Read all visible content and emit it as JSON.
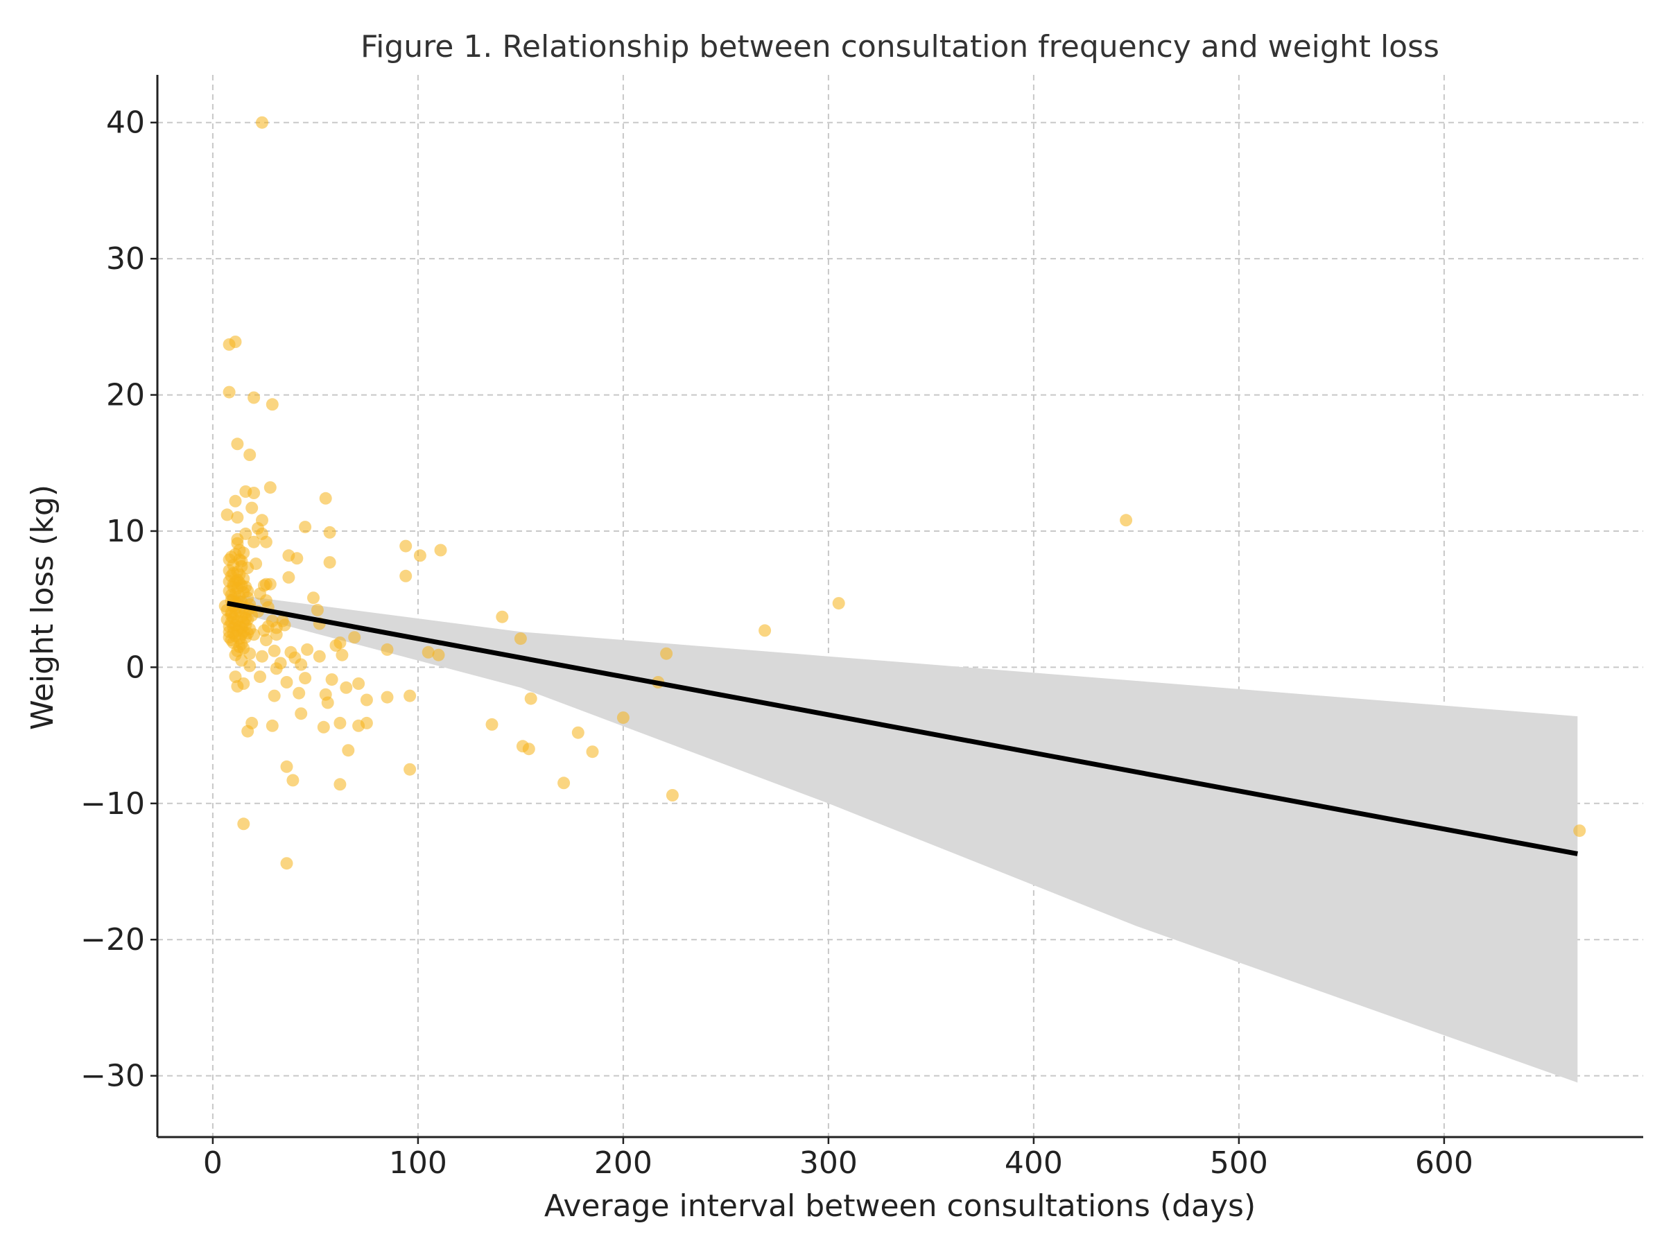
{
  "chart_data": {
    "type": "scatter",
    "title": "Figure 1. Relationship between consultation frequency and weight loss",
    "xlabel": "Average interval between consultations (days)",
    "ylabel": "Weight loss (kg)",
    "xlim": [
      -27,
      697
    ],
    "ylim": [
      -34.5,
      43.5
    ],
    "xticks": [
      0,
      100,
      200,
      300,
      400,
      500,
      600
    ],
    "yticks": [
      -30,
      -20,
      -10,
      0,
      10,
      20,
      30,
      40
    ],
    "xtick_labels": [
      "0",
      "100",
      "200",
      "300",
      "400",
      "500",
      "600"
    ],
    "ytick_labels": [
      "−30",
      "−20",
      "−10",
      "0",
      "10",
      "20",
      "30",
      "40"
    ],
    "grid": true,
    "colors": {
      "points": "#f5b31a",
      "regression_line": "#000000",
      "confidence_band": "#d9d9d9"
    },
    "regression_line": {
      "x": [
        7,
        665
      ],
      "y": [
        4.7,
        -13.7
      ]
    },
    "confidence_band": {
      "x": [
        7,
        150,
        300,
        450,
        665
      ],
      "lower": [
        4.2,
        -1.5,
        -10.0,
        -19.0,
        -30.5
      ],
      "upper": [
        5.4,
        2.6,
        0.8,
        -1.0,
        -3.6
      ]
    },
    "points": [
      [
        24,
        40.0
      ],
      [
        8,
        23.7
      ],
      [
        11,
        23.9
      ],
      [
        8,
        20.2
      ],
      [
        20,
        19.8
      ],
      [
        29,
        19.3
      ],
      [
        12,
        16.4
      ],
      [
        18,
        15.6
      ],
      [
        28,
        13.2
      ],
      [
        16,
        12.9
      ],
      [
        20,
        12.8
      ],
      [
        11,
        12.2
      ],
      [
        55,
        12.4
      ],
      [
        19,
        11.7
      ],
      [
        7,
        11.2
      ],
      [
        12,
        11.0
      ],
      [
        24,
        10.8
      ],
      [
        45,
        10.3
      ],
      [
        445,
        10.8
      ],
      [
        16,
        9.8
      ],
      [
        24,
        9.8
      ],
      [
        57,
        9.9
      ],
      [
        12,
        9.4
      ],
      [
        26,
        9.2
      ],
      [
        94,
        8.9
      ],
      [
        101,
        8.2
      ],
      [
        111,
        8.6
      ],
      [
        37,
        8.2
      ],
      [
        41,
        8.0
      ],
      [
        8,
        7.9
      ],
      [
        13,
        7.9
      ],
      [
        21,
        7.6
      ],
      [
        57,
        7.7
      ],
      [
        17,
        7.3
      ],
      [
        10,
        6.9
      ],
      [
        94,
        6.7
      ],
      [
        37,
        6.6
      ],
      [
        8,
        6.3
      ],
      [
        12,
        6.4
      ],
      [
        25,
        6.0
      ],
      [
        28,
        6.1
      ],
      [
        17,
        5.6
      ],
      [
        49,
        5.1
      ],
      [
        26,
        4.9
      ],
      [
        305,
        4.7
      ],
      [
        11,
        4.8
      ],
      [
        18,
        4.3
      ],
      [
        51,
        4.2
      ],
      [
        141,
        3.7
      ],
      [
        9,
        3.8
      ],
      [
        16,
        3.6
      ],
      [
        29,
        3.4
      ],
      [
        35,
        3.1
      ],
      [
        52,
        3.2
      ],
      [
        10,
        2.9
      ],
      [
        25,
        2.7
      ],
      [
        269,
        2.7
      ],
      [
        14,
        2.4
      ],
      [
        31,
        2.4
      ],
      [
        69,
        2.2
      ],
      [
        150,
        2.1
      ],
      [
        62,
        1.8
      ],
      [
        60,
        1.6
      ],
      [
        13,
        1.5
      ],
      [
        30,
        1.2
      ],
      [
        38,
        1.1
      ],
      [
        46,
        1.3
      ],
      [
        85,
        1.3
      ],
      [
        105,
        1.1
      ],
      [
        110,
        0.9
      ],
      [
        221,
        1.0
      ],
      [
        11,
        0.9
      ],
      [
        40,
        0.7
      ],
      [
        52,
        0.8
      ],
      [
        63,
        0.9
      ],
      [
        24,
        0.8
      ],
      [
        33,
        0.3
      ],
      [
        43,
        0.2
      ],
      [
        18,
        0.1
      ],
      [
        31,
        -0.1
      ],
      [
        11,
        -0.7
      ],
      [
        23,
        -0.7
      ],
      [
        45,
        -0.8
      ],
      [
        58,
        -0.9
      ],
      [
        15,
        -1.2
      ],
      [
        12,
        -1.4
      ],
      [
        36,
        -1.1
      ],
      [
        65,
        -1.5
      ],
      [
        71,
        -1.2
      ],
      [
        217,
        -1.1
      ],
      [
        30,
        -2.1
      ],
      [
        42,
        -1.9
      ],
      [
        55,
        -2.0
      ],
      [
        56,
        -2.6
      ],
      [
        75,
        -2.4
      ],
      [
        85,
        -2.2
      ],
      [
        96,
        -2.1
      ],
      [
        155,
        -2.3
      ],
      [
        43,
        -3.4
      ],
      [
        19,
        -4.1
      ],
      [
        29,
        -4.3
      ],
      [
        54,
        -4.4
      ],
      [
        62,
        -4.1
      ],
      [
        71,
        -4.3
      ],
      [
        75,
        -4.1
      ],
      [
        136,
        -4.2
      ],
      [
        200,
        -3.7
      ],
      [
        17,
        -4.7
      ],
      [
        178,
        -4.8
      ],
      [
        151,
        -5.8
      ],
      [
        154,
        -6.0
      ],
      [
        66,
        -6.1
      ],
      [
        185,
        -6.2
      ],
      [
        36,
        -7.3
      ],
      [
        96,
        -7.5
      ],
      [
        39,
        -8.3
      ],
      [
        62,
        -8.6
      ],
      [
        171,
        -8.5
      ],
      [
        224,
        -9.4
      ],
      [
        15,
        -11.5
      ],
      [
        36,
        -14.4
      ],
      [
        666,
        -12.0
      ],
      [
        6,
        4.5
      ],
      [
        7,
        4.2
      ],
      [
        7,
        3.5
      ],
      [
        8,
        3.0
      ],
      [
        8,
        2.6
      ],
      [
        8,
        2.2
      ],
      [
        9,
        5.3
      ],
      [
        9,
        4.9
      ],
      [
        9,
        4.0
      ],
      [
        9,
        3.3
      ],
      [
        9,
        2.0
      ],
      [
        10,
        5.9
      ],
      [
        10,
        5.0
      ],
      [
        10,
        4.5
      ],
      [
        10,
        3.6
      ],
      [
        10,
        2.5
      ],
      [
        10,
        1.8
      ],
      [
        11,
        6.3
      ],
      [
        11,
        5.4
      ],
      [
        11,
        4.3
      ],
      [
        11,
        3.9
      ],
      [
        11,
        3.1
      ],
      [
        11,
        2.3
      ],
      [
        12,
        7.0
      ],
      [
        12,
        5.8
      ],
      [
        12,
        4.7
      ],
      [
        12,
        3.4
      ],
      [
        12,
        2.7
      ],
      [
        12,
        1.2
      ],
      [
        13,
        8.6
      ],
      [
        13,
        6.8
      ],
      [
        13,
        5.2
      ],
      [
        13,
        4.1
      ],
      [
        13,
        3.0
      ],
      [
        13,
        2.1
      ],
      [
        14,
        7.4
      ],
      [
        14,
        6.0
      ],
      [
        14,
        4.8
      ],
      [
        14,
        3.7
      ],
      [
        14,
        2.9
      ],
      [
        14,
        1.7
      ],
      [
        15,
        6.5
      ],
      [
        15,
        5.5
      ],
      [
        15,
        4.4
      ],
      [
        15,
        3.3
      ],
      [
        15,
        2.6
      ],
      [
        15,
        1.4
      ],
      [
        16,
        4.0
      ],
      [
        16,
        3.1
      ],
      [
        16,
        2.2
      ],
      [
        17,
        5.1
      ],
      [
        17,
        3.5
      ],
      [
        17,
        2.5
      ],
      [
        18,
        4.6
      ],
      [
        18,
        2.8
      ],
      [
        19,
        3.8
      ],
      [
        20,
        2.4
      ],
      [
        8,
        7.1
      ],
      [
        9,
        8.1
      ],
      [
        10,
        7.5
      ],
      [
        11,
        8.3
      ],
      [
        12,
        9.1
      ],
      [
        13,
        6.2
      ],
      [
        14,
        7.8
      ],
      [
        15,
        8.4
      ],
      [
        16,
        5.9
      ],
      [
        8,
        5.6
      ],
      [
        9,
        6.7
      ],
      [
        10,
        6.1
      ],
      [
        26,
        2.0
      ],
      [
        27,
        3.0
      ],
      [
        22,
        4.1
      ],
      [
        23,
        5.4
      ],
      [
        20,
        9.2
      ],
      [
        22,
        10.2
      ],
      [
        26,
        6.1
      ],
      [
        27,
        4.4
      ],
      [
        31,
        2.9
      ],
      [
        34,
        3.4
      ],
      [
        18,
        1.0
      ],
      [
        14,
        0.5
      ]
    ]
  }
}
